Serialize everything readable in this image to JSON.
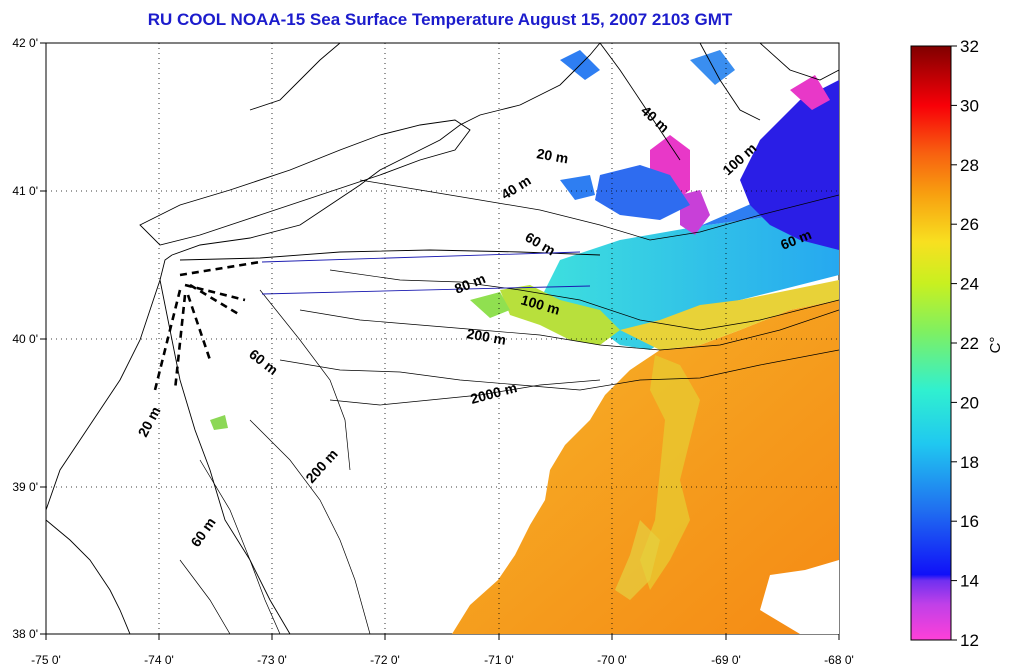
{
  "title": "RU COOL  NOAA-15 Sea Surface Temperature August 15, 2007 2103 GMT",
  "map": {
    "lon_labels": [
      "-75 0'",
      "-74 0'",
      "-73 0'",
      "-72 0'",
      "-71 0'",
      "-70 0'",
      "-69 0'",
      "-68 0'"
    ],
    "lat_labels": [
      "42 0'",
      "41 0'",
      "40 0'",
      "39 0'",
      "38 0'"
    ],
    "isobath_labels": [
      "40 m",
      "20 m",
      "40 m",
      "100 m",
      "60 m",
      "60 m",
      "80 m",
      "100 m",
      "200 m",
      "60 m",
      "2000 m",
      "20 m",
      "200 m",
      "60 m"
    ]
  },
  "colorbar": {
    "ticks": [
      "32",
      "30",
      "28",
      "26",
      "24",
      "22",
      "20",
      "18",
      "16",
      "14",
      "12"
    ],
    "unit": "C°",
    "min": 12,
    "max": 32
  },
  "colors": {
    "title": "#1c1ccc",
    "offshore_warm": "#f5a21e",
    "shelf_cool": "#36d8e6",
    "cold": "#2a1ee6",
    "coldest": "#e838c8"
  }
}
